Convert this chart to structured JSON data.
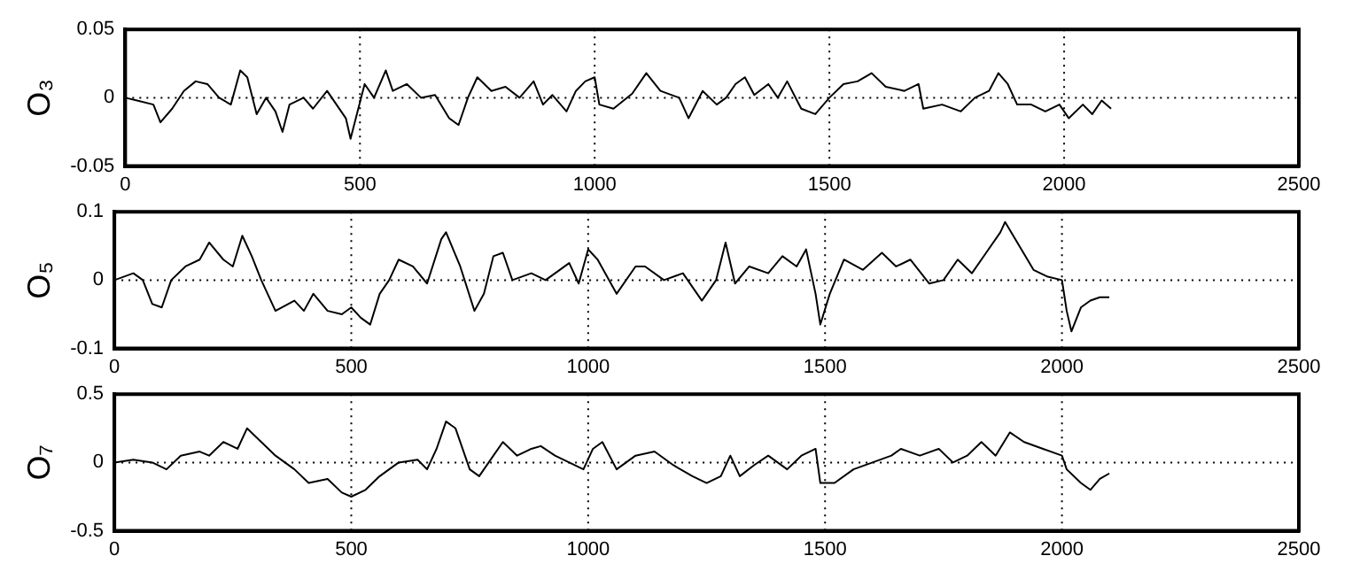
{
  "chart_data": [
    {
      "type": "line",
      "ylabel": "O₃",
      "xlim": [
        0,
        2500
      ],
      "xticks": [
        0,
        500,
        1000,
        1500,
        2000,
        2500
      ],
      "ylim": [
        -0.05,
        0.05
      ],
      "yticks": [
        -0.05,
        0,
        0.05
      ],
      "grid": true,
      "marker": "none",
      "line_style": "solid",
      "series": [
        {
          "color": "#000000",
          "x": [
            0,
            25,
            60,
            75,
            100,
            125,
            150,
            175,
            200,
            225,
            245,
            260,
            280,
            300,
            320,
            335,
            350,
            380,
            400,
            430,
            450,
            470,
            480,
            495,
            510,
            530,
            555,
            570,
            600,
            630,
            660,
            690,
            710,
            730,
            750,
            780,
            810,
            840,
            870,
            890,
            910,
            940,
            960,
            980,
            1000,
            1010,
            1040,
            1080,
            1110,
            1140,
            1180,
            1200,
            1230,
            1260,
            1280,
            1300,
            1320,
            1340,
            1370,
            1390,
            1410,
            1440,
            1470,
            1500,
            1530,
            1560,
            1590,
            1620,
            1660,
            1690,
            1700,
            1740,
            1780,
            1810,
            1840,
            1860,
            1880,
            1900,
            1930,
            1960,
            1990,
            2010,
            2040,
            2060,
            2080,
            2100
          ],
          "values": [
            0,
            -0.002,
            -0.005,
            -0.018,
            -0.008,
            0.005,
            0.012,
            0.01,
            0,
            -0.005,
            0.02,
            0.015,
            -0.012,
            0,
            -0.01,
            -0.025,
            -0.005,
            0,
            -0.008,
            0.005,
            -0.005,
            -0.015,
            -0.03,
            -0.01,
            0.01,
            0,
            0.02,
            0.005,
            0.01,
            0,
            0.002,
            -0.015,
            -0.02,
            0,
            0.015,
            0.005,
            0.008,
            0,
            0.012,
            -0.005,
            0.002,
            -0.01,
            0.005,
            0.012,
            0.015,
            -0.005,
            -0.008,
            0.003,
            0.018,
            0.005,
            0,
            -0.015,
            0.005,
            -0.005,
            0,
            0.01,
            0.015,
            0.002,
            0.01,
            0,
            0.012,
            -0.008,
            -0.012,
            0,
            0.01,
            0.012,
            0.018,
            0.008,
            0.005,
            0.01,
            -0.008,
            -0.005,
            -0.01,
            0,
            0.005,
            0.018,
            0.01,
            -0.005,
            -0.005,
            -0.01,
            -0.005,
            -0.015,
            -0.005,
            -0.012,
            -0.002,
            -0.008
          ]
        }
      ]
    },
    {
      "type": "line",
      "ylabel": "O₅",
      "xlim": [
        0,
        2500
      ],
      "xticks": [
        0,
        500,
        1000,
        1500,
        2000,
        2500
      ],
      "ylim": [
        -0.1,
        0.1
      ],
      "yticks": [
        -0.1,
        0,
        0.1
      ],
      "grid": true,
      "marker": "none",
      "line_style": "solid",
      "series": [
        {
          "color": "#000000",
          "x": [
            0,
            40,
            60,
            80,
            100,
            120,
            150,
            180,
            200,
            230,
            250,
            270,
            290,
            310,
            340,
            380,
            400,
            420,
            450,
            480,
            500,
            520,
            540,
            560,
            580,
            600,
            630,
            660,
            690,
            700,
            730,
            760,
            780,
            800,
            820,
            840,
            880,
            910,
            940,
            960,
            980,
            1000,
            1020,
            1060,
            1100,
            1120,
            1160,
            1200,
            1240,
            1270,
            1290,
            1310,
            1340,
            1380,
            1410,
            1440,
            1460,
            1480,
            1490,
            1510,
            1540,
            1580,
            1620,
            1650,
            1680,
            1720,
            1750,
            1780,
            1810,
            1840,
            1870,
            1880,
            1910,
            1940,
            1970,
            2000,
            2010,
            2020,
            2040,
            2060,
            2080,
            2100
          ],
          "values": [
            0,
            0.01,
            0,
            -0.035,
            -0.04,
            0,
            0.02,
            0.03,
            0.055,
            0.03,
            0.02,
            0.065,
            0.035,
            0,
            -0.045,
            -0.03,
            -0.045,
            -0.02,
            -0.045,
            -0.05,
            -0.04,
            -0.055,
            -0.065,
            -0.02,
            0,
            0.03,
            0.02,
            -0.005,
            0.06,
            0.07,
            0.02,
            -0.045,
            -0.02,
            0.035,
            0.04,
            0,
            0.01,
            0,
            0.015,
            0.025,
            -0.005,
            0.045,
            0.03,
            -0.02,
            0.02,
            0.02,
            0,
            0.01,
            -0.03,
            0,
            0.055,
            -0.005,
            0.02,
            0.01,
            0.035,
            0.02,
            0.045,
            -0.02,
            -0.065,
            -0.02,
            0.03,
            0.015,
            0.04,
            0.02,
            0.03,
            -0.005,
            0,
            0.03,
            0.01,
            0.04,
            0.07,
            0.085,
            0.05,
            0.015,
            0.005,
            0,
            -0.045,
            -0.075,
            -0.04,
            -0.03,
            -0.025,
            -0.025
          ]
        }
      ]
    },
    {
      "type": "line",
      "ylabel": "O₇",
      "xlim": [
        0,
        2500
      ],
      "xticks": [
        0,
        500,
        1000,
        1500,
        2000,
        2500
      ],
      "ylim": [
        -0.5,
        0.5
      ],
      "yticks": [
        -0.5,
        0,
        0.5
      ],
      "grid": true,
      "marker": "none",
      "line_style": "solid",
      "series": [
        {
          "color": "#000000",
          "x": [
            0,
            40,
            80,
            110,
            140,
            180,
            200,
            230,
            260,
            280,
            310,
            340,
            380,
            410,
            450,
            480,
            500,
            530,
            560,
            600,
            640,
            660,
            680,
            700,
            720,
            750,
            770,
            800,
            820,
            850,
            880,
            900,
            930,
            960,
            990,
            1010,
            1030,
            1060,
            1100,
            1140,
            1180,
            1220,
            1250,
            1280,
            1300,
            1320,
            1350,
            1380,
            1420,
            1450,
            1480,
            1490,
            1520,
            1560,
            1600,
            1640,
            1660,
            1700,
            1740,
            1770,
            1800,
            1830,
            1860,
            1890,
            1920,
            1960,
            2000,
            2010,
            2040,
            2060,
            2080,
            2100
          ],
          "values": [
            0,
            0.02,
            0,
            -0.05,
            0.05,
            0.08,
            0.05,
            0.15,
            0.1,
            0.25,
            0.15,
            0.05,
            -0.05,
            -0.15,
            -0.12,
            -0.22,
            -0.25,
            -0.2,
            -0.1,
            0,
            0.02,
            -0.05,
            0.1,
            0.3,
            0.25,
            -0.05,
            -0.1,
            0.05,
            0.15,
            0.05,
            0.1,
            0.12,
            0.05,
            0,
            -0.05,
            0.1,
            0.15,
            -0.05,
            0.05,
            0.08,
            -0.02,
            -0.1,
            -0.15,
            -0.1,
            0.05,
            -0.1,
            -0.02,
            0.05,
            -0.05,
            0.05,
            0.1,
            -0.15,
            -0.15,
            -0.05,
            0,
            0.05,
            0.1,
            0.05,
            0.1,
            0,
            0.05,
            0.15,
            0.05,
            0.22,
            0.15,
            0.1,
            0.05,
            -0.05,
            -0.15,
            -0.2,
            -0.12,
            -0.08
          ]
        }
      ]
    }
  ]
}
